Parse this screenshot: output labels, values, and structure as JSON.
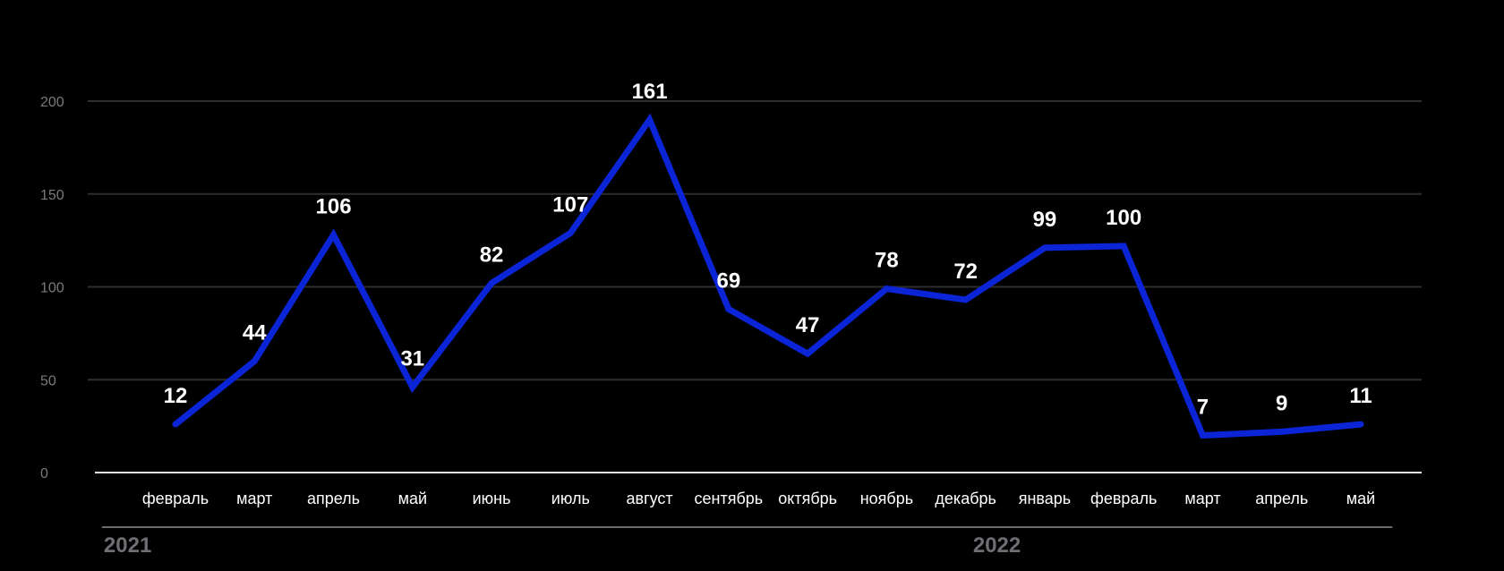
{
  "chart_data": {
    "type": "line",
    "title": "",
    "xlabel": "",
    "ylabel": "",
    "ylim": [
      0,
      200
    ],
    "y_ticks": [
      "0",
      "50",
      "100",
      "150",
      "200"
    ],
    "grid": true,
    "legend": "none",
    "categories": [
      "февраль",
      "март",
      "апрель",
      "май",
      "июнь",
      "июль",
      "август",
      "сентябрь",
      "октябрь",
      "ноябрь",
      "декабрь",
      "январь",
      "февраль",
      "март",
      "апрель",
      "май"
    ],
    "years": [
      {
        "label": "2021",
        "first_index": 0,
        "last_index": 10
      },
      {
        "label": "2022",
        "first_index": 11,
        "last_index": 15
      }
    ],
    "series": [
      {
        "values": [
          12,
          44,
          106,
          31,
          82,
          107,
          161,
          69,
          47,
          78,
          72,
          99,
          100,
          7,
          9,
          11
        ],
        "plotted_values": [
          26,
          60,
          128,
          46,
          102,
          129,
          190,
          88,
          64,
          99,
          93,
          121,
          122,
          20,
          22,
          26
        ],
        "color": "#0b24d6"
      }
    ]
  }
}
